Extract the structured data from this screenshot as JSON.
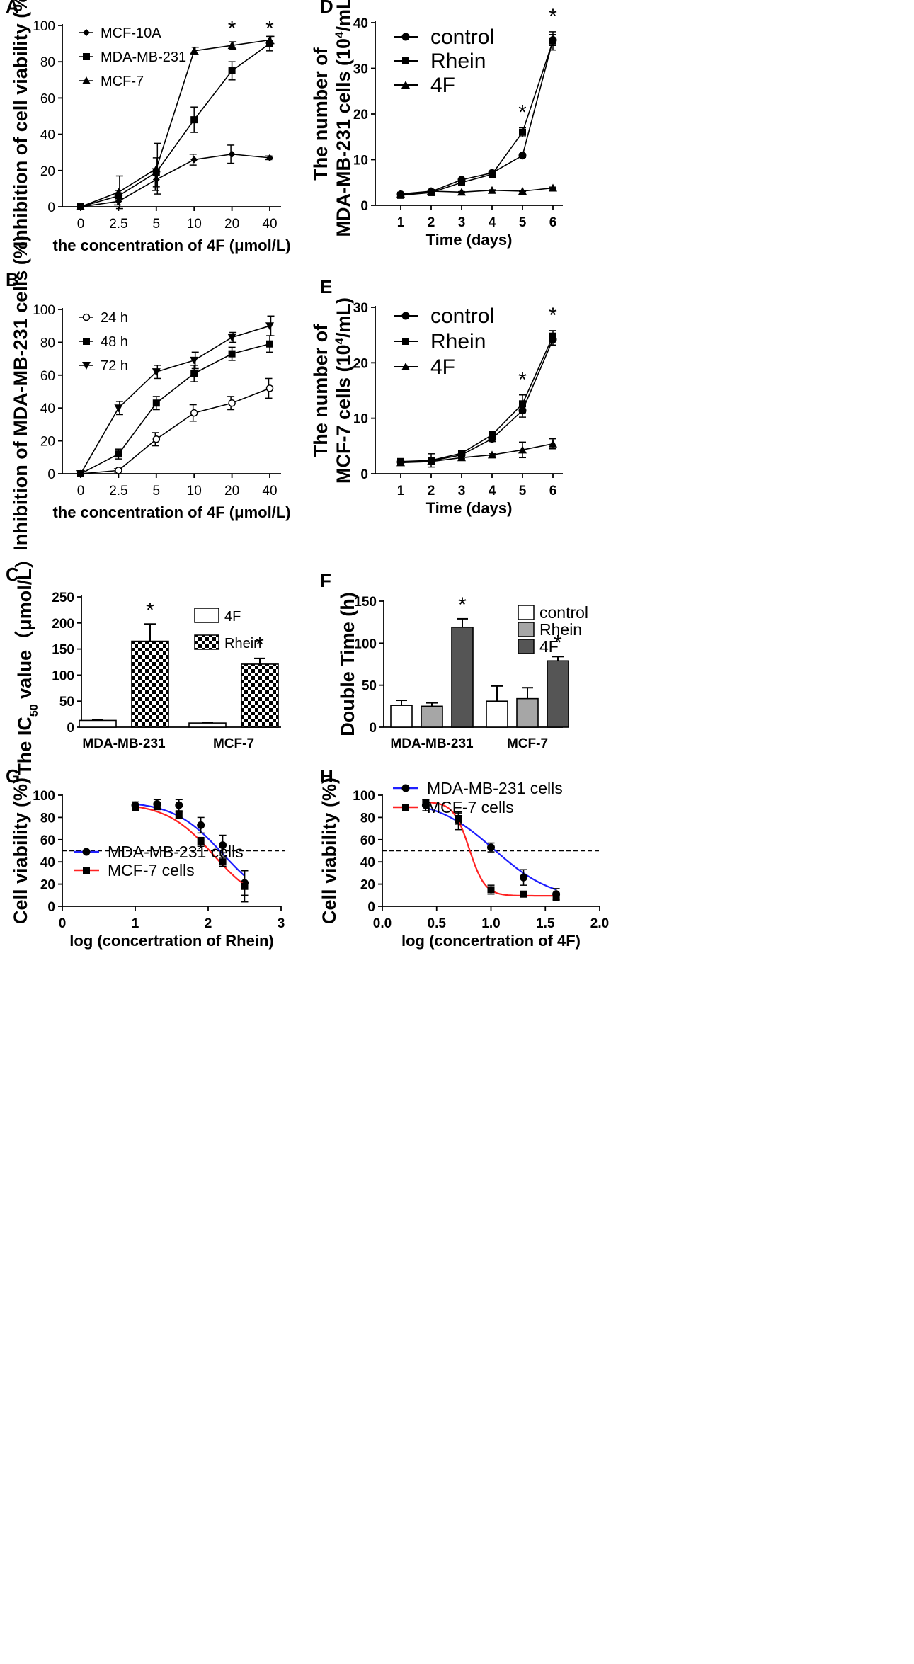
{
  "chart_data": [
    {
      "panel": "A",
      "type": "line",
      "title": "",
      "xlabel": "the concentration of 4F (μmol/L)",
      "ylabel": "Inhibition of cell viability (%)",
      "categories": [
        "0",
        "2.5",
        "5",
        "10",
        "20",
        "40"
      ],
      "ylim": [
        0,
        100
      ],
      "yticks": [
        0,
        20,
        40,
        60,
        80,
        100
      ],
      "series": [
        {
          "name": "MCF-10A",
          "marker": "diamond",
          "values": [
            0,
            3,
            15,
            26,
            29,
            27
          ],
          "err": [
            0,
            2,
            6,
            3,
            5,
            1
          ]
        },
        {
          "name": "MDA-MB-231",
          "marker": "square",
          "values": [
            0,
            6,
            19,
            48,
            75,
            90
          ],
          "err": [
            0,
            3,
            8,
            7,
            5,
            4
          ]
        },
        {
          "name": "MCF-7",
          "marker": "triangle",
          "values": [
            0,
            8,
            21,
            86,
            89,
            92
          ],
          "err": [
            0,
            9,
            14,
            2,
            2,
            2
          ]
        }
      ],
      "annotations": [
        {
          "text": "*",
          "category": "20"
        },
        {
          "text": "*",
          "category": "40"
        }
      ]
    },
    {
      "panel": "B",
      "type": "line",
      "xlabel": "the concentration of 4F (μmol/L)",
      "ylabel": "Inhibition of MDA-MB-231 cells (%)",
      "categories": [
        "0",
        "2.5",
        "5",
        "10",
        "20",
        "40"
      ],
      "ylim": [
        0,
        100
      ],
      "yticks": [
        0,
        20,
        40,
        60,
        80,
        100
      ],
      "series": [
        {
          "name": "24 h",
          "marker": "open-circle",
          "values": [
            0,
            2,
            21,
            37,
            43,
            52
          ],
          "err": [
            0,
            1,
            4,
            5,
            4,
            6
          ]
        },
        {
          "name": "48 h",
          "marker": "square",
          "values": [
            0,
            12,
            43,
            61,
            73,
            79
          ],
          "err": [
            0,
            3,
            4,
            5,
            4,
            5
          ]
        },
        {
          "name": "72 h",
          "marker": "down-triangle",
          "values": [
            0,
            40,
            62,
            69,
            83,
            90
          ],
          "err": [
            0,
            4,
            4,
            5,
            3,
            6
          ]
        }
      ]
    },
    {
      "panel": "C",
      "type": "bar",
      "ylabel": "The IC50 value (μmol/L)",
      "ylabel_main": "The IC",
      "ylabel_sub": "50",
      "ylabel_rest": " value（μmol/L）",
      "categories": [
        "MDA-MB-231",
        "MCF-7"
      ],
      "ylim": [
        0,
        250
      ],
      "yticks": [
        0,
        50,
        100,
        150,
        200,
        250
      ],
      "series": [
        {
          "name": "4F",
          "fill": "white",
          "values": [
            13,
            8
          ],
          "err": [
            1,
            1
          ]
        },
        {
          "name": "Rhein",
          "fill": "checker",
          "values": [
            165,
            121
          ],
          "err": [
            33,
            11
          ]
        }
      ],
      "annotations": [
        {
          "text": "*",
          "category": "MDA-MB-231"
        },
        {
          "text": "*",
          "category": "MCF-7"
        }
      ]
    },
    {
      "panel": "D",
      "type": "line",
      "xlabel": "Time (days)",
      "ylabel_line1": "The number of",
      "ylabel_line2_pre": "MDA-MB-231 cells (10",
      "ylabel_sup": "4",
      "ylabel_line2_post": "/mL)",
      "x": [
        1,
        2,
        3,
        4,
        5,
        6
      ],
      "ylim": [
        0,
        40
      ],
      "yticks": [
        0,
        10,
        20,
        30,
        40
      ],
      "series": [
        {
          "name": "control",
          "marker": "circle",
          "values": [
            2.4,
            3.0,
            5.6,
            7.1,
            10.9,
            36.2
          ],
          "err": [
            0.2,
            0.2,
            0.3,
            0.3,
            0.4,
            1.2
          ]
        },
        {
          "name": "Rhein",
          "marker": "square",
          "values": [
            2.2,
            2.8,
            5.0,
            6.8,
            16.0,
            36.0
          ],
          "err": [
            0.2,
            0.2,
            0.3,
            0.4,
            1.0,
            2.0
          ]
        },
        {
          "name": "4F",
          "marker": "triangle",
          "values": [
            2.5,
            3.1,
            2.9,
            3.3,
            3.1,
            3.8
          ],
          "err": [
            0.1,
            0.1,
            0.1,
            0.1,
            0.1,
            0.2
          ]
        }
      ],
      "annotations": [
        {
          "text": "*",
          "x": 5
        },
        {
          "text": "*",
          "x": 6
        }
      ]
    },
    {
      "panel": "E",
      "type": "line",
      "xlabel": "Time (days)",
      "ylabel_line1": "The number of",
      "ylabel_line2_pre": "MCF-7 cells (10",
      "ylabel_sup": "4",
      "ylabel_line2_post": "/mL)",
      "x": [
        1,
        2,
        3,
        4,
        5,
        6
      ],
      "ylim": [
        0,
        30
      ],
      "yticks": [
        0,
        10,
        20,
        30
      ],
      "series": [
        {
          "name": "control",
          "marker": "circle",
          "values": [
            2.1,
            2.3,
            3.4,
            6.3,
            11.4,
            24.2
          ],
          "err": [
            0.2,
            0.6,
            0.4,
            0.5,
            1.2,
            1.0
          ]
        },
        {
          "name": "Rhein",
          "marker": "square",
          "values": [
            2.2,
            2.4,
            3.7,
            7.0,
            12.6,
            24.8
          ],
          "err": [
            0.2,
            1.2,
            0.4,
            0.6,
            1.6,
            1.0
          ]
        },
        {
          "name": "4F",
          "marker": "triangle",
          "values": [
            2.0,
            2.2,
            2.9,
            3.4,
            4.3,
            5.4
          ],
          "err": [
            0.1,
            0.4,
            0.2,
            0.2,
            1.4,
            0.9
          ]
        }
      ],
      "annotations": [
        {
          "text": "*",
          "x": 5
        },
        {
          "text": "*",
          "x": 6
        }
      ]
    },
    {
      "panel": "F",
      "type": "bar",
      "ylabel": "Double Time (h)",
      "categories": [
        "MDA-MB-231",
        "MCF-7"
      ],
      "ylim": [
        0,
        150
      ],
      "yticks": [
        0,
        50,
        100,
        150
      ],
      "series": [
        {
          "name": "control",
          "color": "#ffffff",
          "values": [
            26,
            31
          ],
          "err": [
            6,
            18
          ]
        },
        {
          "name": "Rhein",
          "color": "#a6a6a6",
          "values": [
            25,
            34
          ],
          "err": [
            4,
            13
          ]
        },
        {
          "name": "4F",
          "color": "#555555",
          "values": [
            119,
            79
          ],
          "err": [
            10,
            5
          ]
        }
      ],
      "annotations": [
        {
          "text": "*",
          "category": "MDA-MB-231"
        },
        {
          "text": "*",
          "category": "MCF-7"
        }
      ]
    },
    {
      "panel": "G",
      "type": "scatter",
      "xlabel": "log (concertration of Rhein)",
      "ylabel": "Cell viability (%)",
      "xlim": [
        0,
        3
      ],
      "xticks": [
        0,
        1,
        2,
        3
      ],
      "ylim": [
        0,
        100
      ],
      "yticks": [
        0,
        20,
        40,
        60,
        80,
        100
      ],
      "reference_line": 50,
      "series": [
        {
          "name": "MDA-MB-231 cells",
          "color": "#1f1fff",
          "marker": "circle",
          "x": [
            1.0,
            1.3,
            1.6,
            1.9,
            2.2,
            2.5
          ],
          "values": [
            91,
            92,
            91,
            73,
            55,
            21
          ],
          "err": [
            3,
            4,
            5,
            7,
            9,
            11
          ],
          "fit": {
            "top": 94.5,
            "bottom": 0,
            "logEC50": 2.2,
            "hill": 1.3
          }
        },
        {
          "name": "MCF-7 cells",
          "color": "#ff2222",
          "marker": "square",
          "x": [
            1.0,
            1.3,
            1.6,
            1.9,
            2.2,
            2.5
          ],
          "values": [
            89,
            90,
            82,
            58,
            40,
            18
          ],
          "err": [
            3,
            3,
            3,
            4,
            4,
            14
          ],
          "fit": {
            "top": 93,
            "bottom": 0,
            "logEC50": 2.07,
            "hill": 1.35
          }
        }
      ]
    },
    {
      "panel": "H",
      "type": "scatter",
      "xlabel": "log (concertration of 4F)",
      "ylabel": "Cell viability (%)",
      "xlim": [
        0,
        2
      ],
      "xticks": [
        "0.0",
        "0.5",
        "1.0",
        "1.5",
        "2.0"
      ],
      "ylim": [
        0,
        100
      ],
      "yticks": [
        0,
        20,
        40,
        60,
        80,
        100
      ],
      "reference_line": 50,
      "series": [
        {
          "name": "MDA-MB-231 cells",
          "color": "#1f1fff",
          "marker": "circle",
          "x": [
            0.4,
            0.7,
            1.0,
            1.3,
            1.6
          ],
          "values": [
            91,
            77,
            53,
            26,
            11
          ],
          "err": [
            5,
            8,
            4,
            7,
            5
          ],
          "fit": {
            "top": 97,
            "bottom": 5,
            "logEC50": 1.03,
            "hill": 1.6
          }
        },
        {
          "name": "MCF-7 cells",
          "color": "#ff2222",
          "marker": "square",
          "x": [
            0.4,
            0.7,
            1.0,
            1.3,
            1.6
          ],
          "values": [
            93,
            79,
            15,
            11,
            8
          ],
          "err": [
            3,
            5,
            4,
            2,
            2
          ],
          "fit": {
            "top": 94,
            "bottom": 9.5,
            "logEC50": 0.8,
            "hill": 6
          }
        }
      ]
    }
  ]
}
